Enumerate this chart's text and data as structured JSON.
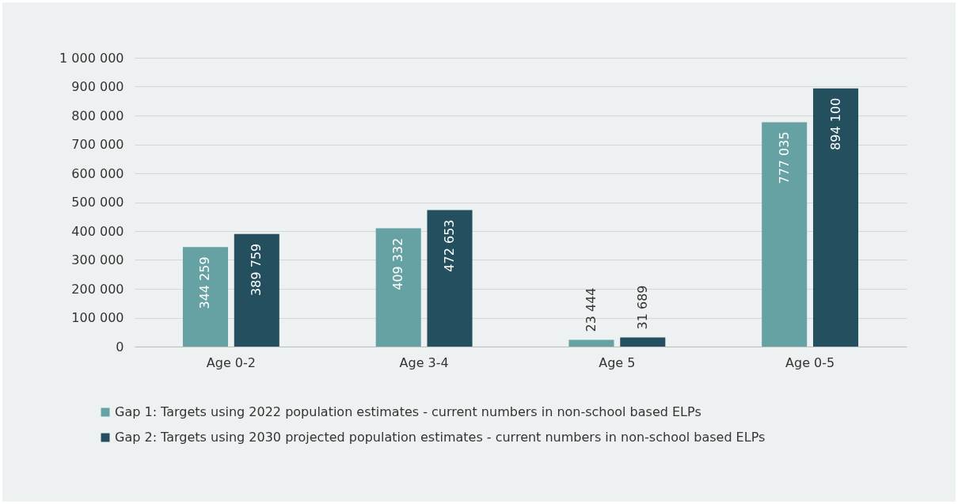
{
  "chart_data": {
    "type": "bar",
    "categories": [
      "Age 0-2",
      "Age 3-4",
      "Age 5",
      "Age 0-5"
    ],
    "series": [
      {
        "name": "Gap 1: Targets using 2022 population estimates - current numbers in non-school based ELPs",
        "color": "#66a2a3",
        "values": [
          344259,
          409332,
          23444,
          777035
        ],
        "value_labels": [
          "344 259",
          "409 332",
          "23 444",
          "777 035"
        ]
      },
      {
        "name": "Gap 2: Targets using 2030 projected population estimates - current numbers in non-school based ELPs",
        "color": "#234f5e",
        "values": [
          389759,
          472653,
          31689,
          894100
        ],
        "value_labels": [
          "389 759",
          "472 653",
          "31 689",
          "894 100"
        ]
      }
    ],
    "ylim": [
      0,
      1000000
    ],
    "yticks": [
      0,
      {
        "value": 100000,
        "label": "100 000"
      },
      {
        "value": 200000,
        "label": "200 000"
      },
      {
        "value": 300000,
        "label": "300 000"
      },
      {
        "value": 400000,
        "label": "400 000"
      },
      {
        "value": 500000,
        "label": "500 000"
      },
      {
        "value": 600000,
        "label": "600 000"
      },
      {
        "value": 700000,
        "label": "700 000"
      },
      {
        "value": 800000,
        "label": "800 000"
      },
      {
        "value": 900000,
        "label": "900 000"
      },
      {
        "value": 1000000,
        "label": "1 000 000"
      }
    ],
    "grid": "y",
    "legend": "bottom"
  }
}
